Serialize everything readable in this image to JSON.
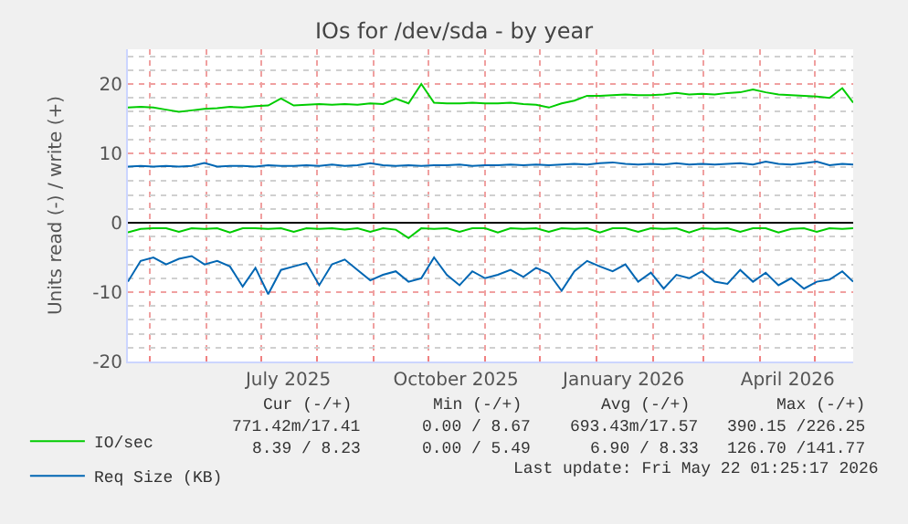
{
  "chart_data": {
    "type": "line",
    "title": "IOs for /dev/sda - by year",
    "ylabel": "Units read (-) / write (+)",
    "x": [
      "2025-04-19",
      "2025-04-26",
      "2025-05-03",
      "2025-05-10",
      "2025-05-17",
      "2025-05-24",
      "2025-05-31",
      "2025-06-07",
      "2025-06-14",
      "2025-06-21",
      "2025-06-28",
      "2025-07-05",
      "2025-07-12",
      "2025-07-19",
      "2025-07-26",
      "2025-08-02",
      "2025-08-09",
      "2025-08-16",
      "2025-08-23",
      "2025-08-30",
      "2025-09-06",
      "2025-09-13",
      "2025-09-20",
      "2025-09-27",
      "2025-10-04",
      "2025-10-11",
      "2025-10-18",
      "2025-10-25",
      "2025-11-01",
      "2025-11-08",
      "2025-11-15",
      "2025-11-22",
      "2025-11-29",
      "2025-12-06",
      "2025-12-13",
      "2025-12-20",
      "2025-12-27",
      "2026-01-03",
      "2026-01-10",
      "2026-01-17",
      "2026-01-24",
      "2026-01-31",
      "2026-02-07",
      "2026-02-14",
      "2026-02-21",
      "2026-02-28",
      "2026-03-07",
      "2026-03-14",
      "2026-03-21",
      "2026-03-28",
      "2026-04-04",
      "2026-04-11",
      "2026-04-18",
      "2026-04-25",
      "2026-05-02",
      "2026-05-09",
      "2026-05-16",
      "2026-05-22"
    ],
    "series": [
      {
        "name": "IO/sec",
        "color": "#00cc00",
        "values": [
          16.6,
          16.7,
          16.6,
          16.3,
          16.0,
          16.2,
          16.4,
          16.5,
          16.7,
          16.6,
          16.8,
          16.9,
          17.9,
          16.9,
          17.0,
          17.1,
          17.0,
          17.1,
          17.0,
          17.2,
          17.1,
          17.9,
          17.2,
          20.0,
          17.3,
          17.2,
          17.2,
          17.3,
          17.2,
          17.2,
          17.3,
          17.1,
          17.0,
          16.6,
          17.2,
          17.6,
          18.3,
          18.3,
          18.4,
          18.5,
          18.4,
          18.4,
          18.5,
          18.7,
          18.5,
          18.6,
          18.5,
          18.7,
          18.8,
          19.2,
          18.8,
          18.5,
          18.4,
          18.3,
          18.2,
          18.0,
          19.4,
          17.3
        ]
      },
      {
        "color": "#00cc00",
        "values": [
          -1.4,
          -0.9,
          -0.8,
          -0.8,
          -1.3,
          -0.8,
          -0.9,
          -0.8,
          -1.4,
          -0.8,
          -0.8,
          -0.9,
          -0.8,
          -1.3,
          -0.8,
          -0.9,
          -0.8,
          -1.0,
          -0.8,
          -1.3,
          -0.8,
          -1.0,
          -2.2,
          -0.8,
          -0.9,
          -0.8,
          -1.3,
          -0.8,
          -0.8,
          -1.4,
          -0.8,
          -0.9,
          -0.8,
          -1.3,
          -0.8,
          -0.9,
          -0.8,
          -1.4,
          -0.8,
          -0.8,
          -1.3,
          -0.8,
          -0.9,
          -0.8,
          -1.4,
          -0.8,
          -0.9,
          -0.8,
          -1.3,
          -0.8,
          -0.8,
          -1.4,
          -0.9,
          -0.8,
          -1.3,
          -0.8,
          -0.9,
          -0.8
        ]
      },
      {
        "name": "Req Size (KB)",
        "color": "#0066b3",
        "values": [
          8.1,
          8.2,
          8.1,
          8.2,
          8.1,
          8.2,
          8.6,
          8.1,
          8.2,
          8.2,
          8.1,
          8.3,
          8.2,
          8.2,
          8.3,
          8.2,
          8.4,
          8.2,
          8.3,
          8.6,
          8.3,
          8.2,
          8.3,
          8.2,
          8.3,
          8.3,
          8.4,
          8.2,
          8.3,
          8.3,
          8.4,
          8.3,
          8.4,
          8.3,
          8.4,
          8.5,
          8.4,
          8.6,
          8.7,
          8.5,
          8.4,
          8.5,
          8.4,
          8.6,
          8.4,
          8.5,
          8.4,
          8.5,
          8.6,
          8.4,
          8.8,
          8.5,
          8.4,
          8.6,
          8.8,
          8.3,
          8.5,
          8.4
        ]
      },
      {
        "color": "#0066b3",
        "values": [
          -8.5,
          -5.5,
          -5.0,
          -6.0,
          -5.2,
          -4.8,
          -6.0,
          -5.5,
          -6.3,
          -9.2,
          -6.5,
          -10.3,
          -6.8,
          -6.3,
          -5.8,
          -9.0,
          -6.0,
          -5.3,
          -6.8,
          -8.3,
          -7.5,
          -7.0,
          -8.5,
          -8.0,
          -5.0,
          -7.5,
          -9.0,
          -7.0,
          -8.0,
          -7.5,
          -6.8,
          -7.8,
          -6.5,
          -7.3,
          -9.8,
          -7.0,
          -5.5,
          -6.3,
          -7.0,
          -6.0,
          -8.5,
          -7.2,
          -9.5,
          -7.5,
          -8.0,
          -7.0,
          -8.5,
          -8.8,
          -6.8,
          -8.5,
          -7.2,
          -9.0,
          -8.0,
          -9.5,
          -8.5,
          -8.2,
          -7.0,
          -8.5
        ]
      }
    ],
    "xlim": [
      "2025-04-19",
      "2026-05-22"
    ],
    "xticks": [
      {
        "value": "2025-07-16",
        "label": "July 2025"
      },
      {
        "value": "2025-10-16",
        "label": "October 2025"
      },
      {
        "value": "2026-01-16",
        "label": "January 2026"
      },
      {
        "value": "2026-04-16",
        "label": "April 2026"
      }
    ],
    "ylim": [
      -20,
      25
    ],
    "yticks": [
      -20,
      -10,
      0,
      10,
      20
    ],
    "grid": true,
    "legend": "bottom left",
    "marker": "none",
    "line_style": "solid",
    "ref_lines": [
      {
        "axis": "y",
        "value": 0,
        "color": "#000000"
      }
    ],
    "annotations": [
      "Cur (-/+)",
      "Min (-/+)",
      "Avg (-/+)",
      "Max (-/+)",
      "771.42m/17.41",
      "0.00 / 8.67",
      "693.43m/17.57",
      "390.15 /226.25",
      "8.39 / 8.23",
      "0.00 / 5.49",
      "6.90 / 8.33",
      "126.70 /141.77",
      "Last update: Fri May 22 01:25:17 2026"
    ]
  }
}
